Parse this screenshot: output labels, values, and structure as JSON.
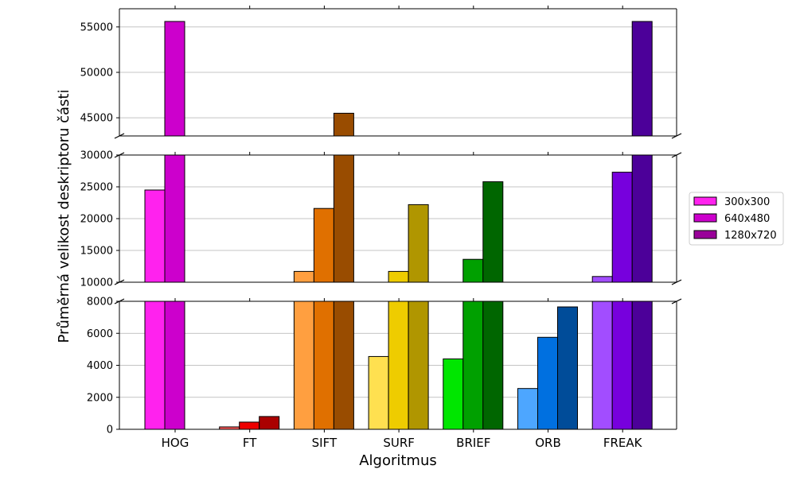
{
  "chart_data": {
    "type": "bar",
    "xlabel": "Algoritmus",
    "ylabel": "Průměrná velikost deskriptoru části",
    "categories": [
      "HOG",
      "FT",
      "SIFT",
      "SURF",
      "BRIEF",
      "ORB",
      "FREAK"
    ],
    "series": [
      {
        "name": "300x300",
        "values": [
          24500,
          150,
          11700,
          4550,
          4400,
          2550,
          10900
        ]
      },
      {
        "name": "640x480",
        "values": [
          55600,
          450,
          21600,
          11700,
          13600,
          5750,
          27300
        ]
      },
      {
        "name": "1280x720",
        "values": [
          null,
          800,
          45500,
          22200,
          25800,
          7650,
          55600
        ]
      }
    ],
    "bar_colors": [
      [
        "#ff22ee",
        "#cc00cc",
        "#990099"
      ],
      [
        "#ff5a5a",
        "#ee0000",
        "#aa0000"
      ],
      [
        "#ff9f40",
        "#e07000",
        "#994c00"
      ],
      [
        "#ffe050",
        "#eecc00",
        "#b09600"
      ],
      [
        "#00e600",
        "#00a000",
        "#006600"
      ],
      [
        "#4da6ff",
        "#0070e0",
        "#004c99"
      ],
      [
        "#a24dff",
        "#7700dd",
        "#4c0099"
      ]
    ],
    "legend_colors": [
      "#ff22ee",
      "#cc00cc",
      "#990099"
    ],
    "legend_position": "right",
    "grid": "y",
    "broken_y_axis": true,
    "panels": [
      {
        "ylim": [
          43000,
          57000
        ],
        "ticks": [
          45000,
          50000,
          55000
        ]
      },
      {
        "ylim": [
          10000,
          30000
        ],
        "ticks": [
          10000,
          15000,
          20000,
          25000,
          30000
        ]
      },
      {
        "ylim": [
          0,
          8000
        ],
        "ticks": [
          0,
          2000,
          4000,
          6000,
          8000
        ]
      }
    ]
  }
}
